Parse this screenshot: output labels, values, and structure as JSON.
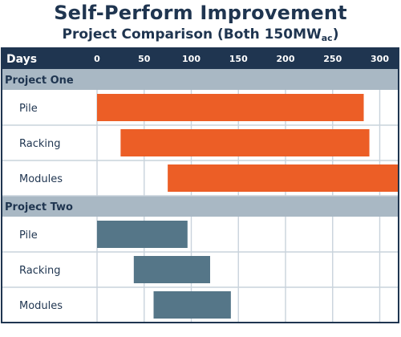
{
  "title": "Self-Perform Improvement",
  "subtitle": "Project Comparison (Both 150MW",
  "subtitle_sub": "ac",
  "subtitle_end": ")",
  "header_label": "Days",
  "colors": {
    "header_bg": "#1f3550",
    "group_bg": "#a9b8c4",
    "project_one": "#ec5e26",
    "project_two": "#557688",
    "grid": "#c9d3dc",
    "text": "#1f3550"
  },
  "chart_data": {
    "type": "bar",
    "orientation": "horizontal-range",
    "x_ticks": [
      0,
      50,
      100,
      150,
      200,
      250,
      300
    ],
    "xlim": [
      0,
      320
    ],
    "groups": [
      {
        "name": "Project One",
        "tasks": [
          {
            "label": "Pile",
            "start": 0,
            "end": 283
          },
          {
            "label": "Racking",
            "start": 25,
            "end": 289
          },
          {
            "label": "Modules",
            "start": 75,
            "end": 320
          }
        ]
      },
      {
        "name": "Project Two",
        "tasks": [
          {
            "label": "Pile",
            "start": 0,
            "end": 96
          },
          {
            "label": "Racking",
            "start": 39,
            "end": 120
          },
          {
            "label": "Modules",
            "start": 60,
            "end": 142
          }
        ]
      }
    ]
  }
}
